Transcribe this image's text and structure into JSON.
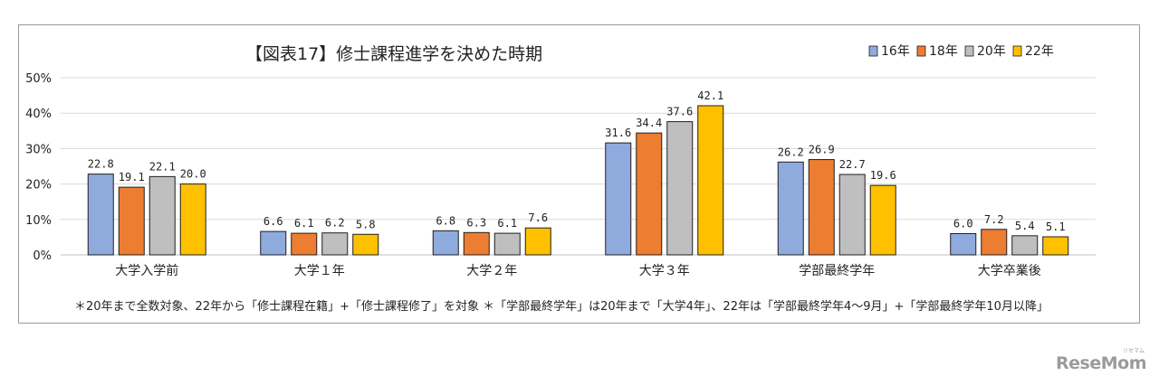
{
  "chart_data": {
    "type": "bar",
    "title": "【図表17】修士課程進学を決めた時期",
    "categories": [
      "大学入学前",
      "大学１年",
      "大学２年",
      "大学３年",
      "学部最終学年",
      "大学卒業後"
    ],
    "series": [
      {
        "name": "16年",
        "color": "#8faadc",
        "values": [
          22.8,
          6.6,
          6.8,
          31.6,
          26.2,
          6.0
        ]
      },
      {
        "name": "18年",
        "color": "#ed7d31",
        "values": [
          19.1,
          6.1,
          6.3,
          34.4,
          26.9,
          7.2
        ]
      },
      {
        "name": "20年",
        "color": "#bfbfbf",
        "values": [
          22.1,
          6.2,
          6.1,
          37.6,
          22.7,
          5.4
        ]
      },
      {
        "name": "22年",
        "color": "#ffc000",
        "values": [
          20.0,
          5.8,
          7.6,
          42.1,
          19.6,
          5.1
        ]
      }
    ],
    "y_ticks": [
      "0%",
      "10%",
      "20%",
      "30%",
      "40%",
      "50%"
    ],
    "ylim": [
      0,
      50
    ],
    "grid": true,
    "legend_position": "top-right",
    "note": "＊20年まで全数対象、22年から「修士課程在籍」+「修士課程修了」を対象 ＊「学部最終学年」は20年まで「大学4年」、22年は「学部最終学年4～9月」+「学部最終学年10月以降」"
  },
  "watermark": {
    "text": "ReseMom",
    "ruby": "リセマム"
  }
}
